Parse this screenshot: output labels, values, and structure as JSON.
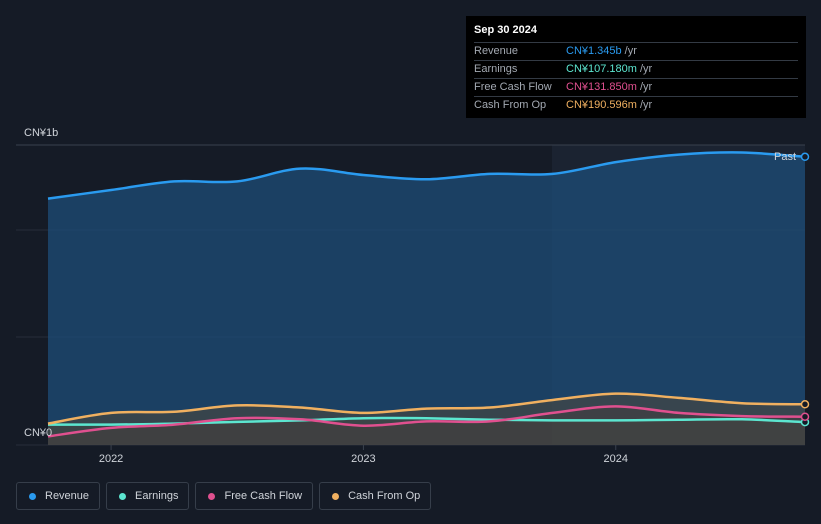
{
  "tooltip": {
    "date": "Sep 30 2024",
    "rows": [
      {
        "label": "Revenue",
        "value": "CN¥1.345b",
        "unit": "/yr",
        "color": "#2a9bf0"
      },
      {
        "label": "Earnings",
        "value": "CN¥107.180m",
        "unit": "/yr",
        "color": "#5ce6d0"
      },
      {
        "label": "Free Cash Flow",
        "value": "CN¥131.850m",
        "unit": "/yr",
        "color": "#e0508f"
      },
      {
        "label": "Cash From Op",
        "value": "CN¥190.596m",
        "unit": "/yr",
        "color": "#f0b060"
      }
    ]
  },
  "past_label": "Past",
  "legend": [
    {
      "label": "Revenue",
      "color": "#2a9bf0"
    },
    {
      "label": "Earnings",
      "color": "#5ce6d0"
    },
    {
      "label": "Free Cash Flow",
      "color": "#e0508f"
    },
    {
      "label": "Cash From Op",
      "color": "#f0b060"
    }
  ],
  "chart_data": {
    "type": "area",
    "y_tick_labels": [
      "CN¥1b",
      "CN¥0"
    ],
    "x_tick_labels": [
      "2022",
      "2023",
      "2024"
    ],
    "x_ticks": [
      2022.0,
      2023.0,
      2024.0
    ],
    "xlim": [
      2021.75,
      2024.75
    ],
    "ylim": [
      0,
      1400
    ],
    "grid": true,
    "series": [
      {
        "name": "Revenue",
        "color": "#2a9bf0",
        "x": [
          2021.75,
          2022.0,
          2022.25,
          2022.5,
          2022.75,
          2023.0,
          2023.25,
          2023.5,
          2023.75,
          2024.0,
          2024.25,
          2024.5,
          2024.75
        ],
        "y": [
          1150,
          1190,
          1230,
          1230,
          1290,
          1260,
          1240,
          1265,
          1265,
          1320,
          1355,
          1365,
          1345
        ]
      },
      {
        "name": "Earnings",
        "color": "#5ce6d0",
        "x": [
          2021.75,
          2022.0,
          2022.25,
          2022.5,
          2022.75,
          2023.0,
          2023.25,
          2023.5,
          2023.75,
          2024.0,
          2024.25,
          2024.5,
          2024.75
        ],
        "y": [
          95,
          95,
          100,
          108,
          115,
          125,
          125,
          118,
          115,
          115,
          118,
          120,
          107
        ]
      },
      {
        "name": "Free Cash Flow",
        "color": "#e0508f",
        "x": [
          2021.75,
          2022.0,
          2022.25,
          2022.5,
          2022.75,
          2023.0,
          2023.25,
          2023.5,
          2023.75,
          2024.0,
          2024.25,
          2024.5,
          2024.75
        ],
        "y": [
          40,
          80,
          95,
          125,
          120,
          90,
          110,
          110,
          150,
          180,
          150,
          135,
          132
        ]
      },
      {
        "name": "Cash From Op",
        "color": "#f0b060",
        "x": [
          2021.75,
          2022.0,
          2022.25,
          2022.5,
          2022.75,
          2023.0,
          2023.25,
          2023.5,
          2023.75,
          2024.0,
          2024.25,
          2024.5,
          2024.75
        ],
        "y": [
          100,
          150,
          155,
          185,
          175,
          150,
          170,
          175,
          210,
          240,
          220,
          195,
          190
        ]
      }
    ]
  }
}
